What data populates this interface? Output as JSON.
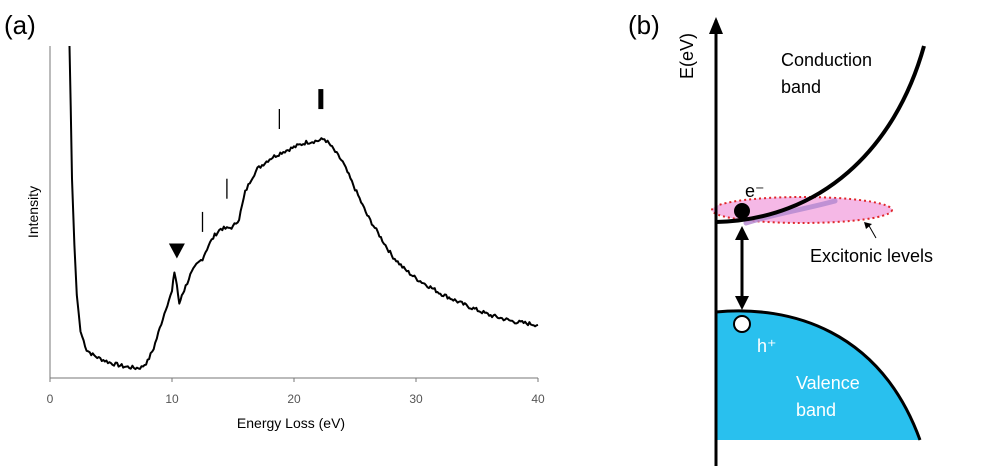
{
  "panel_a": {
    "label": "(a)"
  },
  "panel_b": {
    "label": "(b)",
    "y_axis_label": "E(eV)",
    "conduction_label_line1": "Conduction",
    "conduction_label_line2": "band",
    "valence_label_line1": "Valence",
    "valence_label_line2": "band",
    "electron_label": "e⁻",
    "hole_label": "h⁺",
    "excitonic_label": "Excitonic  levels",
    "colors": {
      "valence": "#29c0ee",
      "exciton_fill": "#f5b8e6",
      "exciton_border": "#e0262a"
    }
  },
  "chart_data": {
    "type": "line",
    "xlabel": "Energy Loss (eV)",
    "ylabel": "Intensity",
    "xlim": [
      0,
      40
    ],
    "ylim": [
      0,
      100
    ],
    "x_ticks": [
      0,
      10,
      20,
      30,
      40
    ],
    "y_tick_labels_shown": false,
    "grid": false,
    "series": [
      {
        "x": [
          1.6,
          1.7,
          1.8,
          2.0,
          2.2,
          2.5,
          3.0,
          3.5,
          4.0,
          5.0,
          6.0,
          7.0,
          7.5,
          8.0,
          8.5,
          9.0,
          9.5,
          10.0,
          10.2,
          10.4,
          10.6,
          10.8,
          11.0,
          11.5,
          12.0,
          12.5,
          13.0,
          13.5,
          14.0,
          14.5,
          15.0,
          15.5,
          16.0,
          16.5,
          17.0,
          18.0,
          19.0,
          20.0,
          21.0,
          22.0,
          22.5,
          23.0,
          24.0,
          25.0,
          26.0,
          27.0,
          28.0,
          29.0,
          30.0,
          32.0,
          34.0,
          36.0,
          38.0,
          40.0
        ],
        "y": [
          100,
          82,
          60,
          40,
          25,
          14,
          8.5,
          7,
          6,
          4.5,
          3.5,
          3,
          3.2,
          5,
          9,
          15,
          21,
          26,
          32,
          28,
          22,
          25,
          26.5,
          31,
          34,
          36,
          40,
          43,
          45,
          45,
          45.5,
          48,
          56,
          60,
          63,
          66,
          68,
          69.5,
          71,
          71.5,
          72,
          70,
          65,
          57,
          49,
          43,
          37,
          33,
          30,
          25.5,
          22,
          19,
          17,
          16
        ]
      }
    ],
    "annotations": [
      {
        "type": "triangle-marker",
        "x": 10.4,
        "y": 36
      },
      {
        "type": "tick-marker",
        "x": 12.5,
        "y": 44
      },
      {
        "type": "tick-marker",
        "x": 14.5,
        "y": 54
      },
      {
        "type": "tick-marker",
        "x": 18.8,
        "y": 75
      },
      {
        "type": "bold-tick-marker",
        "x": 22.2,
        "y": 81
      }
    ]
  }
}
